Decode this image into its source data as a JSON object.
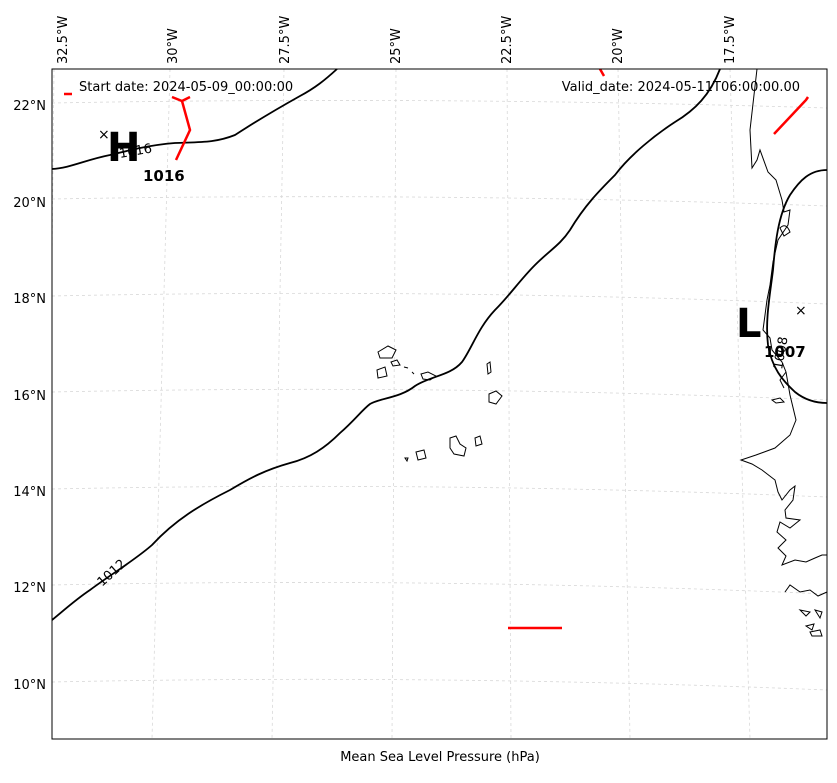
{
  "header": {
    "start_date": "Start date: 2024-05-09_00:00:00",
    "valid_date": "Valid_date: 2024-05-11T06:00:00.00"
  },
  "xlabel": "Mean Sea Level Pressure (hPa)",
  "lon_ticks": [
    "32.5°W",
    "30°W",
    "27.5°W",
    "25°W",
    "22.5°W",
    "20°W",
    "17.5°W"
  ],
  "lat_ticks": [
    "22°N",
    "20°N",
    "18°N",
    "16°N",
    "14°N",
    "12°N",
    "10°N"
  ],
  "pressure_centers": [
    {
      "type": "H",
      "value": "1016"
    },
    {
      "type": "L",
      "value": "1007"
    }
  ],
  "contour_labels": [
    "1016",
    "1012",
    "1008"
  ],
  "colors": {
    "contour": "#000000",
    "front": "#ff0000",
    "grid": "#d0d0d0",
    "coast": "#000000"
  }
}
